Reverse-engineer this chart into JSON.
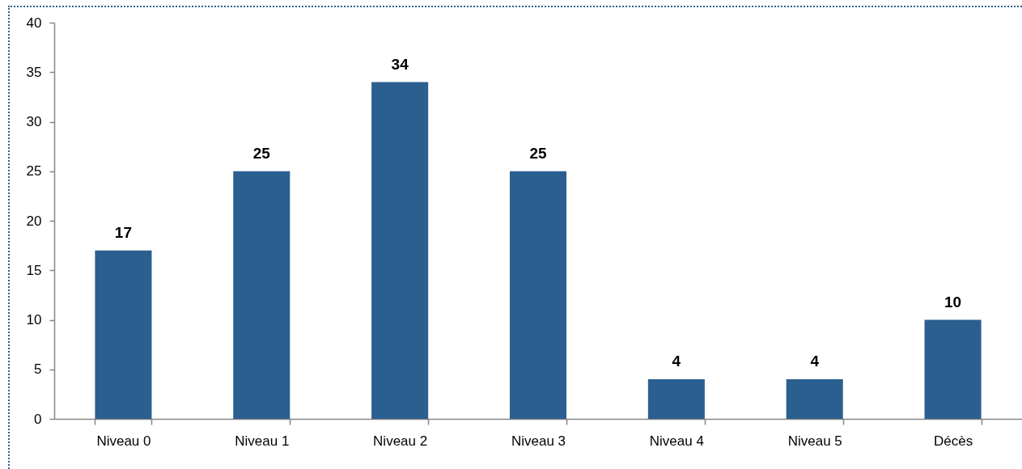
{
  "chart_data": {
    "type": "bar",
    "categories": [
      "Niveau 0",
      "Niveau 1",
      "Niveau 2",
      "Niveau 3",
      "Niveau 4",
      "Niveau 5",
      "Décès"
    ],
    "values": [
      17,
      25,
      34,
      25,
      4,
      4,
      10
    ],
    "color": "#2b5f8f",
    "ylim": [
      0,
      40
    ],
    "yticks": [
      0,
      5,
      10,
      15,
      20,
      25,
      30,
      35,
      40
    ],
    "data_labels": true
  }
}
